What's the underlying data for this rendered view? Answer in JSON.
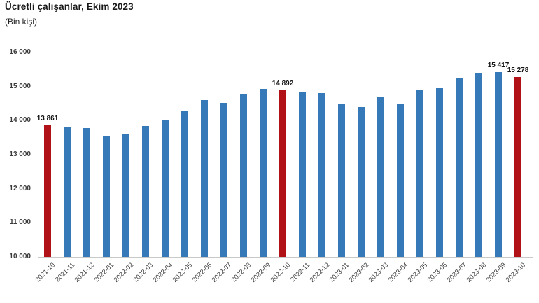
{
  "header": {
    "title": "Ücretli çalışanlar, Ekim 2023",
    "subtitle": "(Bin kişi)"
  },
  "chart_data": {
    "type": "bar",
    "title": "Ücretli çalışanlar, Ekim 2023",
    "subtitle": "(Bin kişi)",
    "ylabel": "Bin kişi",
    "xlabel": "",
    "categories": [
      "2021-10",
      "2021-11",
      "2021-12",
      "2022-01",
      "2022-02",
      "2022-03",
      "2022-04",
      "2022-05",
      "2022-06",
      "2022-07",
      "2022-08",
      "2022-09",
      "2022-10",
      "2022-11",
      "2022-12",
      "2023-01",
      "2023-02",
      "2023-03",
      "2023-04",
      "2023-05",
      "2023-06",
      "2023-07",
      "2023-08",
      "2023-09",
      "2023-10"
    ],
    "values": [
      13861,
      13830,
      13780,
      13560,
      13610,
      13850,
      14000,
      14300,
      14610,
      14530,
      14790,
      14930,
      14892,
      14840,
      14810,
      14500,
      14400,
      14710,
      14490,
      14910,
      14960,
      15230,
      15380,
      15417,
      15278
    ],
    "data_labels": {
      "0": "13 861",
      "12": "14 892",
      "23": "15 417",
      "24": "15 278"
    },
    "highlight_indices": [
      0,
      12,
      24
    ],
    "ylim": [
      10000,
      16000
    ],
    "ytick_step": 1000,
    "ytick_labels": [
      "10 000",
      "11 000",
      "12 000",
      "13 000",
      "14 000",
      "15 000",
      "16 000"
    ],
    "grid": false,
    "legend": null,
    "colors": {
      "bar": "#3579B8",
      "highlight": "#B01218",
      "axis_line": "#c9c9c9",
      "tick_text": "#3a3a3a"
    }
  }
}
